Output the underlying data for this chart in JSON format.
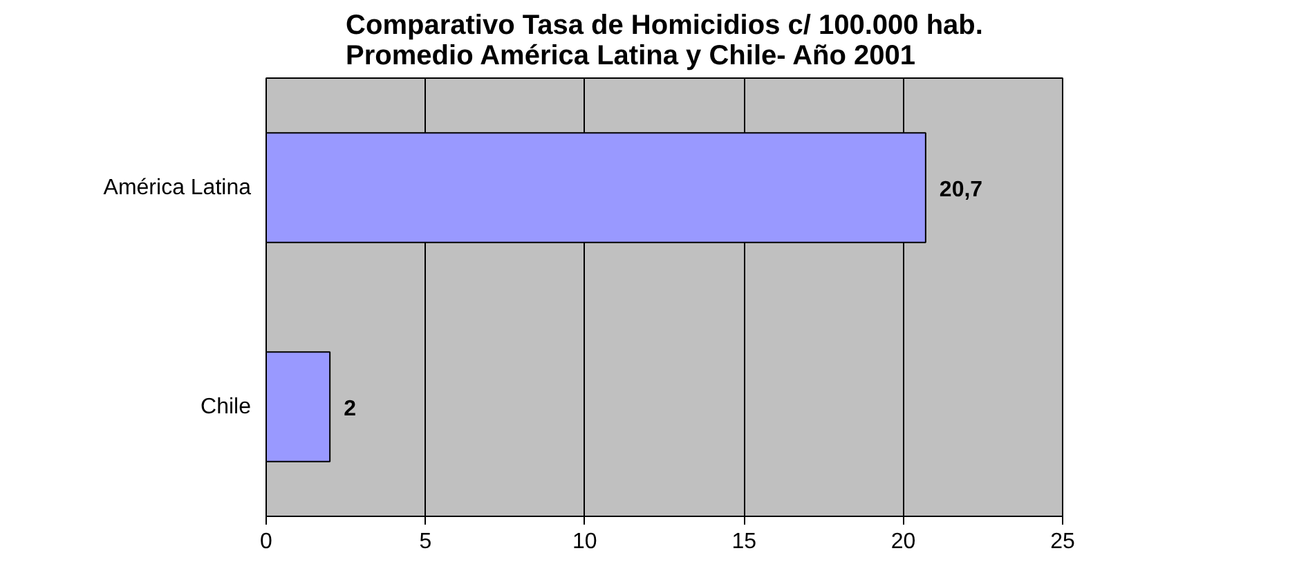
{
  "chart_data": {
    "type": "bar",
    "orientation": "horizontal",
    "title": "Comparativo Tasa de Homicidios c/ 100.000 hab.\nPromedio América Latina y Chile- Año 2001",
    "categories": [
      "América Latina",
      "Chile"
    ],
    "values": [
      20.7,
      2
    ],
    "value_labels": [
      "20,7",
      "2"
    ],
    "color": "#9999ff",
    "xlim": [
      0,
      25
    ],
    "xticks": [
      0,
      5,
      10,
      15,
      20,
      25
    ],
    "grid": "x"
  }
}
